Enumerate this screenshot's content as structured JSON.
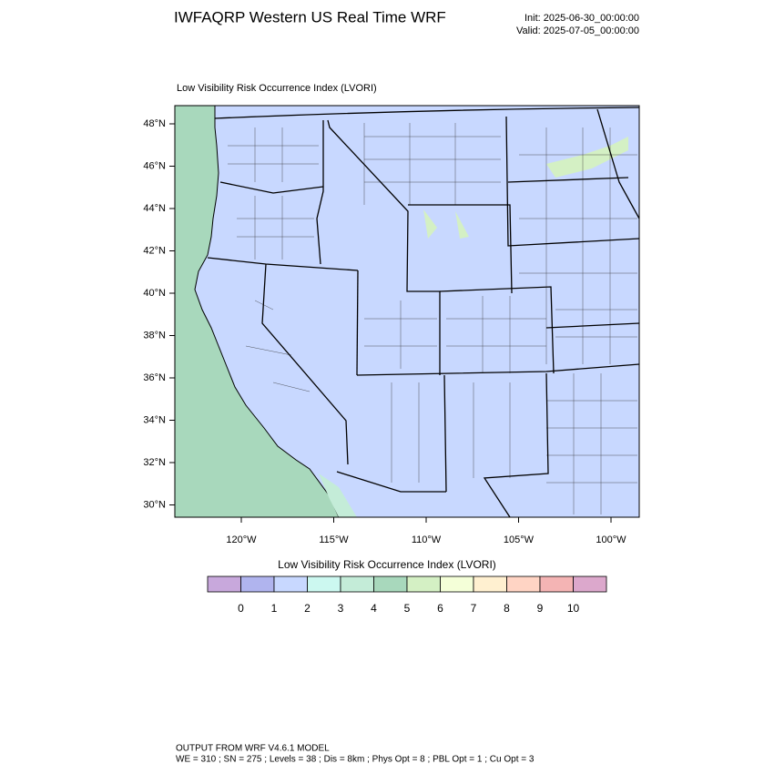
{
  "header": {
    "title": "IWFAQRP Western US Real Time WRF",
    "init": "Init: 2025-06-30_00:00:00",
    "valid": "Valid: 2025-07-05_00:00:00"
  },
  "map": {
    "subtitle": "Low Visibility Risk Occurrence Index   (LVORI)",
    "lat_ticks": [
      {
        "value": 48,
        "label": "48°N"
      },
      {
        "value": 46,
        "label": "46°N"
      },
      {
        "value": 44,
        "label": "44°N"
      },
      {
        "value": 42,
        "label": "42°N"
      },
      {
        "value": 40,
        "label": "40°N"
      },
      {
        "value": 38,
        "label": "38°N"
      },
      {
        "value": 36,
        "label": "36°N"
      },
      {
        "value": 34,
        "label": "34°N"
      },
      {
        "value": 32,
        "label": "32°N"
      },
      {
        "value": 30,
        "label": "30°N"
      }
    ],
    "lon_ticks": [
      {
        "value": -120,
        "label": "120°W"
      },
      {
        "value": -115,
        "label": "115°W"
      },
      {
        "value": -110,
        "label": "110°W"
      },
      {
        "value": -105,
        "label": "105°W"
      },
      {
        "value": -100,
        "label": "100°W"
      }
    ]
  },
  "colorbar": {
    "title": "Low Visibility Risk Occurrence Index  (LVORI)",
    "labels": [
      0,
      1,
      2,
      3,
      4,
      5,
      6,
      7,
      8,
      9,
      10
    ],
    "colors": [
      "#c8a8dc",
      "#b0b4ee",
      "#c8d8ff",
      "#ccf8f0",
      "#c4ecd8",
      "#a8d8bc",
      "#d4f0c4",
      "#f4ffd8",
      "#fff0d0",
      "#ffd4c4",
      "#f4b4b4",
      "#dca8cc"
    ]
  },
  "footer": {
    "line1": "OUTPUT FROM WRF V4.6.1 MODEL",
    "line2": "WE = 310 ; SN = 275 ; Levels = 38 ; Dis = 8km ; Phys Opt = 8 ; PBL Opt = 1 ; Cu Opt = 3"
  }
}
